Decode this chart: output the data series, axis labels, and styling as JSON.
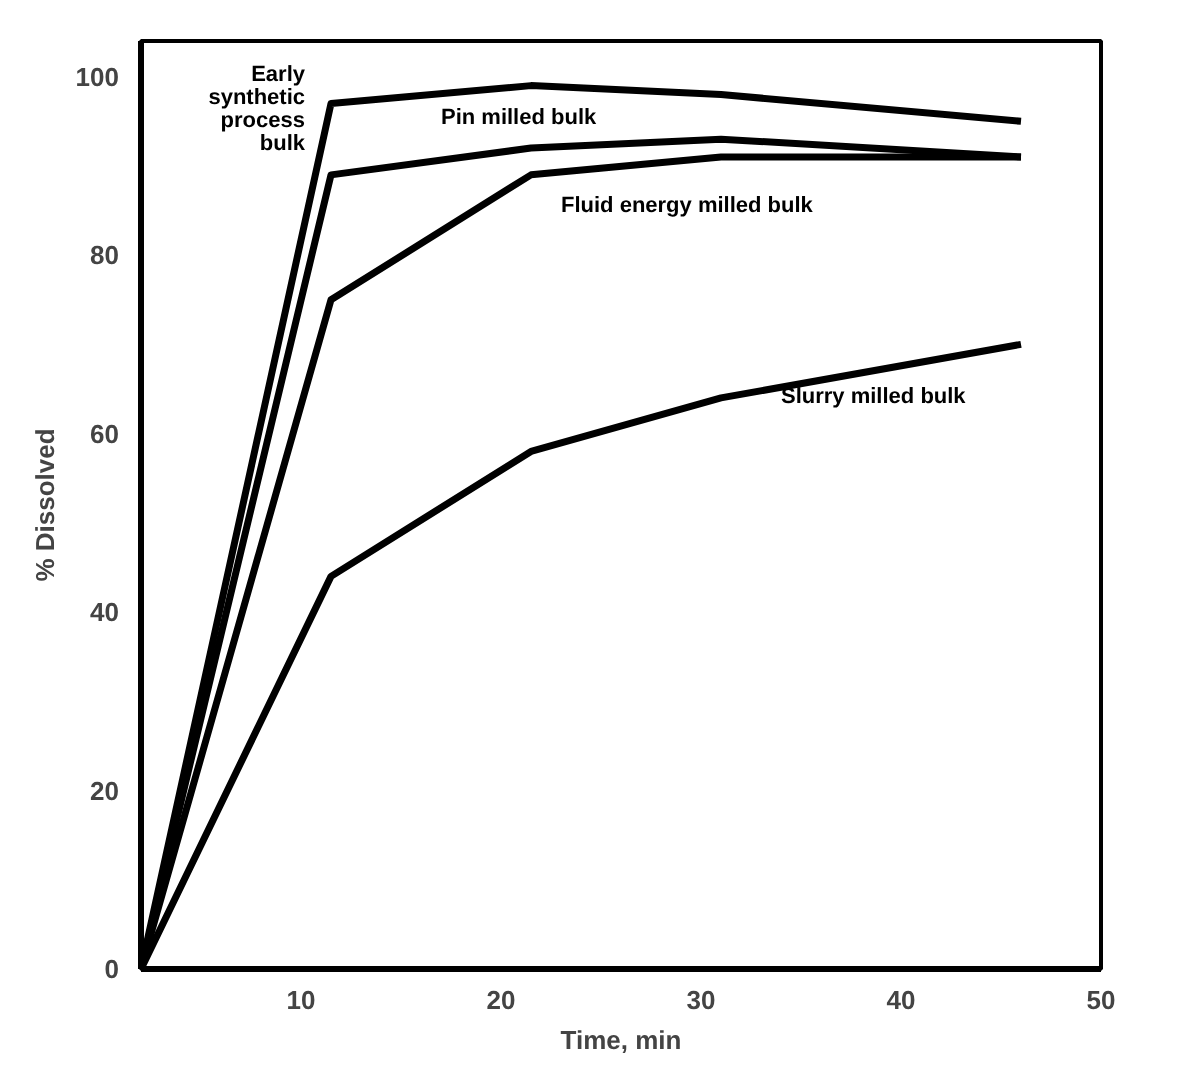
{
  "chart_data": {
    "type": "line",
    "xlabel": "Time, min",
    "ylabel": "% Dissolved",
    "xlim": [
      2,
      50
    ],
    "ylim": [
      0,
      104
    ],
    "xticks": [
      10,
      20,
      30,
      40,
      50
    ],
    "yticks": [
      0,
      20,
      40,
      60,
      80,
      100
    ],
    "grid": false,
    "marker": "none",
    "line_style": "solid",
    "series": [
      {
        "name": "Early\nsynthetic\nprocess\nbulk",
        "color": "#000000",
        "x": [
          2,
          11.5,
          21.5,
          31,
          46
        ],
        "values": [
          0,
          97,
          99,
          98,
          95
        ]
      },
      {
        "name": "Pin milled bulk",
        "color": "#000000",
        "x": [
          2,
          11.5,
          21.5,
          31,
          46
        ],
        "values": [
          0,
          89,
          92,
          93,
          91
        ]
      },
      {
        "name": "Fluid energy milled bulk",
        "color": "#000000",
        "x": [
          2,
          11.5,
          21.5,
          31,
          46
        ],
        "values": [
          0,
          75,
          89,
          91,
          91
        ]
      },
      {
        "name": "Slurry milled bulk",
        "color": "#000000",
        "x": [
          2,
          11.5,
          21.5,
          31,
          46
        ],
        "values": [
          0,
          44,
          58,
          64,
          70
        ]
      }
    ]
  }
}
